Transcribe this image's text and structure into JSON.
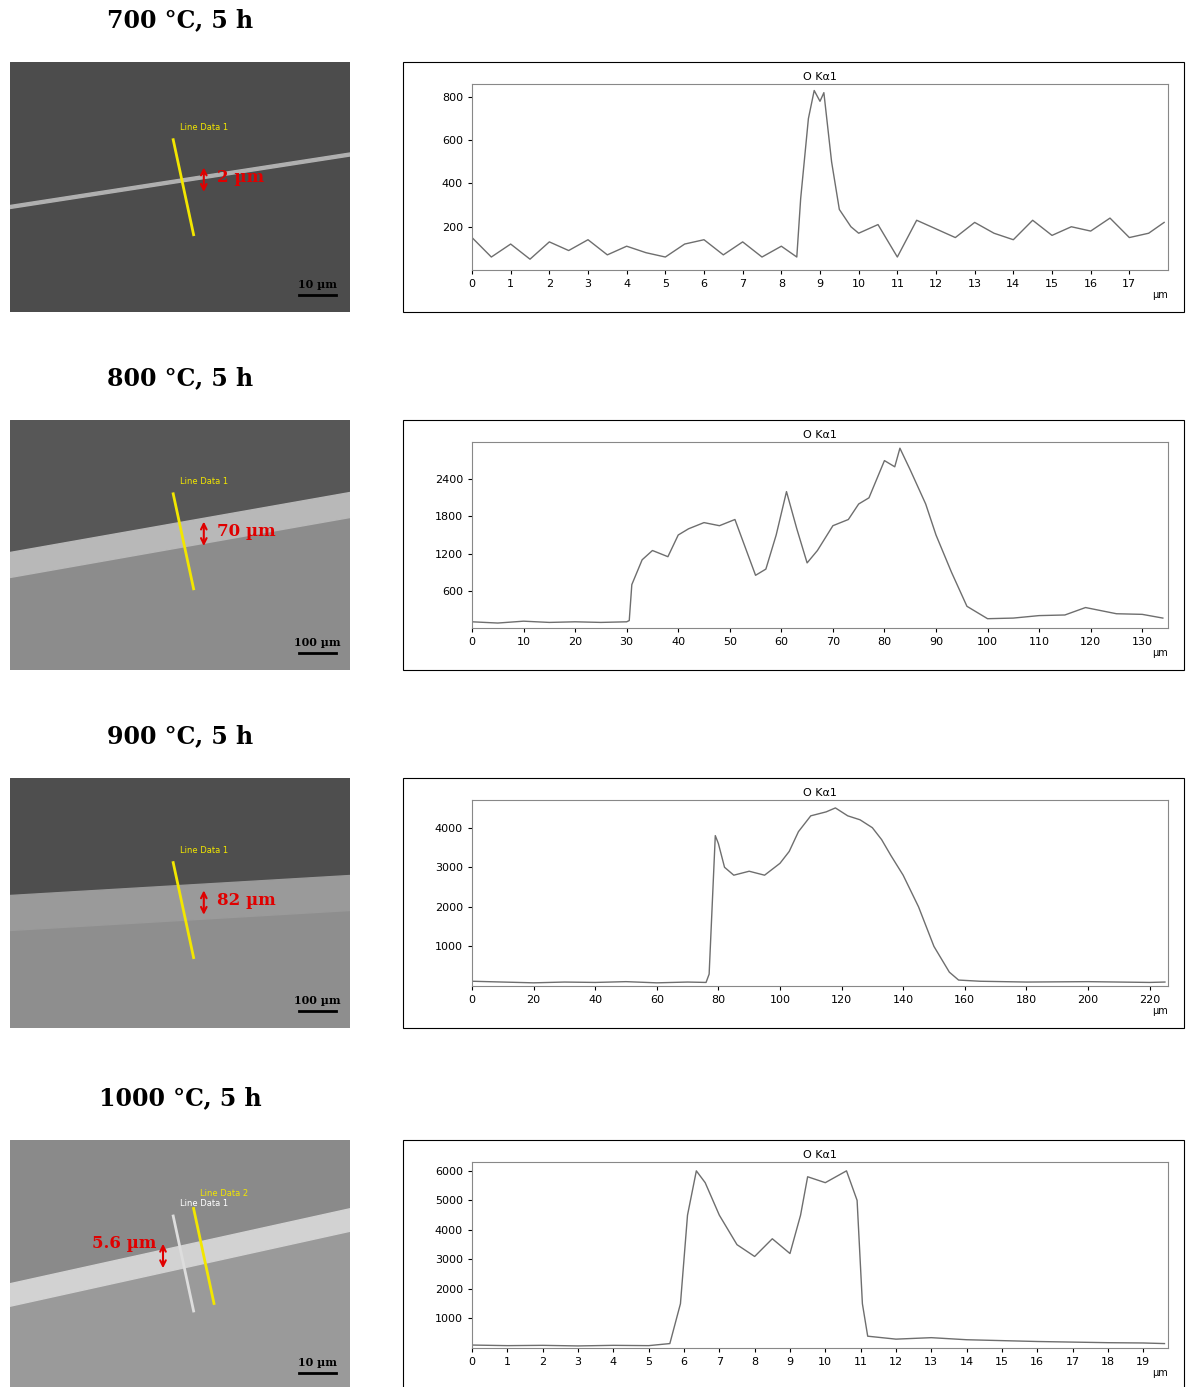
{
  "images": [
    {
      "heading": "700 °C, 5 h",
      "thickness_label": "2 µm",
      "line_labels": [
        "Line Data 1"
      ],
      "scale_bar": "10 µm"
    },
    {
      "heading": "800 °C, 5 h",
      "thickness_label": "70 µm",
      "line_labels": [
        "Line Data 1"
      ],
      "scale_bar": "100 µm"
    },
    {
      "heading": "900 °C, 5 h",
      "thickness_label": "82 µm",
      "line_labels": [
        "Line Data 1"
      ],
      "scale_bar": "100 µm"
    },
    {
      "heading": "1000 °C, 5 h",
      "thickness_label": "5.6 µm",
      "line_labels": [
        "Line Data 1",
        "Line Data 2"
      ],
      "scale_bar": "10 µm"
    }
  ],
  "chart_data": [
    {
      "type": "line",
      "title": "O Kα1",
      "xlabel": "µm",
      "color": "#6e6e6e",
      "grid": false,
      "x": [
        0,
        0.5,
        1,
        1.5,
        2,
        2.5,
        3,
        3.5,
        4,
        4.5,
        5,
        5.5,
        6,
        6.5,
        7,
        7.5,
        8,
        8.4,
        8.5,
        8.7,
        8.85,
        9.0,
        9.1,
        9.3,
        9.5,
        9.8,
        10,
        10.5,
        11,
        11.5,
        12,
        12.5,
        13,
        13.5,
        14,
        14.5,
        15,
        15.5,
        16,
        16.5,
        17,
        17.5,
        17.9
      ],
      "values": [
        150,
        60,
        120,
        50,
        130,
        90,
        140,
        70,
        110,
        80,
        60,
        120,
        140,
        70,
        130,
        60,
        110,
        60,
        330,
        700,
        830,
        780,
        820,
        500,
        280,
        200,
        170,
        210,
        60,
        230,
        190,
        150,
        220,
        170,
        140,
        230,
        160,
        200,
        180,
        240,
        150,
        170,
        220
      ],
      "xlim": [
        0,
        18
      ],
      "ylim": [
        0,
        860
      ],
      "xticks": [
        0,
        1,
        2,
        3,
        4,
        5,
        6,
        7,
        8,
        9,
        10,
        11,
        12,
        13,
        14,
        15,
        16,
        17
      ],
      "yticks": [
        200,
        400,
        600,
        800
      ]
    },
    {
      "type": "line",
      "title": "O Kα1",
      "xlabel": "µm",
      "color": "#6e6e6e",
      "grid": false,
      "x": [
        0,
        5,
        10,
        15,
        20,
        25,
        30,
        30.5,
        31,
        33,
        35,
        38,
        40,
        42,
        45,
        48,
        51,
        53,
        55,
        57,
        59,
        61,
        63,
        65,
        67,
        70,
        73,
        75,
        77,
        80,
        82,
        83,
        85,
        88,
        90,
        93,
        96,
        100,
        105,
        110,
        115,
        119,
        125,
        130,
        134
      ],
      "values": [
        100,
        80,
        110,
        90,
        100,
        90,
        100,
        120,
        700,
        1100,
        1250,
        1150,
        1500,
        1600,
        1700,
        1650,
        1750,
        1300,
        850,
        950,
        1500,
        2200,
        1600,
        1050,
        1250,
        1650,
        1750,
        2000,
        2100,
        2700,
        2600,
        2900,
        2550,
        2000,
        1500,
        900,
        350,
        150,
        160,
        200,
        210,
        330,
        230,
        220,
        160
      ],
      "xlim": [
        0,
        135
      ],
      "ylim": [
        0,
        3000
      ],
      "xticks": [
        0,
        10,
        20,
        30,
        40,
        50,
        60,
        70,
        80,
        90,
        100,
        110,
        120,
        130
      ],
      "yticks": [
        600,
        1200,
        1800,
        2400
      ]
    },
    {
      "type": "line",
      "title": "O Kα1",
      "xlabel": "µm",
      "color": "#6e6e6e",
      "grid": false,
      "x": [
        0,
        10,
        20,
        30,
        40,
        50,
        60,
        70,
        76,
        77,
        79,
        80,
        82,
        85,
        90,
        95,
        100,
        103,
        106,
        110,
        115,
        118,
        122,
        126,
        130,
        133,
        136,
        140,
        145,
        150,
        155,
        158,
        165,
        180,
        200,
        220,
        225
      ],
      "values": [
        120,
        100,
        80,
        100,
        90,
        110,
        80,
        100,
        90,
        300,
        3800,
        3600,
        3000,
        2800,
        2900,
        2800,
        3100,
        3400,
        3900,
        4300,
        4400,
        4500,
        4300,
        4200,
        4000,
        3700,
        3300,
        2800,
        2000,
        1000,
        350,
        150,
        120,
        100,
        110,
        90,
        100
      ],
      "xlim": [
        0,
        226
      ],
      "ylim": [
        0,
        4700
      ],
      "xticks": [
        0,
        20,
        40,
        60,
        80,
        100,
        120,
        140,
        160,
        180,
        200,
        220
      ],
      "yticks": [
        1000,
        2000,
        3000,
        4000
      ]
    },
    {
      "type": "line",
      "title": "O Kα1",
      "xlabel": "µm",
      "color": "#6e6e6e",
      "grid": false,
      "x": [
        0,
        1,
        2,
        3,
        4,
        5,
        5.6,
        5.9,
        6.1,
        6.35,
        6.6,
        7,
        7.5,
        8,
        8.5,
        9,
        9.3,
        9.5,
        10,
        10.6,
        10.9,
        11.05,
        11.2,
        12,
        13,
        14,
        15,
        16,
        17,
        18,
        19,
        19.6
      ],
      "values": [
        100,
        80,
        90,
        70,
        90,
        80,
        150,
        1500,
        4500,
        6000,
        5600,
        4500,
        3500,
        3100,
        3700,
        3200,
        4500,
        5800,
        5600,
        6000,
        5000,
        1500,
        400,
        300,
        350,
        280,
        250,
        220,
        200,
        180,
        170,
        150
      ],
      "xlim": [
        0,
        19.7
      ],
      "ylim": [
        0,
        6300
      ],
      "xticks": [
        0,
        1,
        2,
        3,
        4,
        5,
        6,
        7,
        8,
        9,
        10,
        11,
        12,
        13,
        14,
        15,
        16,
        17,
        18,
        19
      ],
      "yticks": [
        1000,
        2000,
        3000,
        4000,
        5000,
        6000
      ]
    }
  ]
}
